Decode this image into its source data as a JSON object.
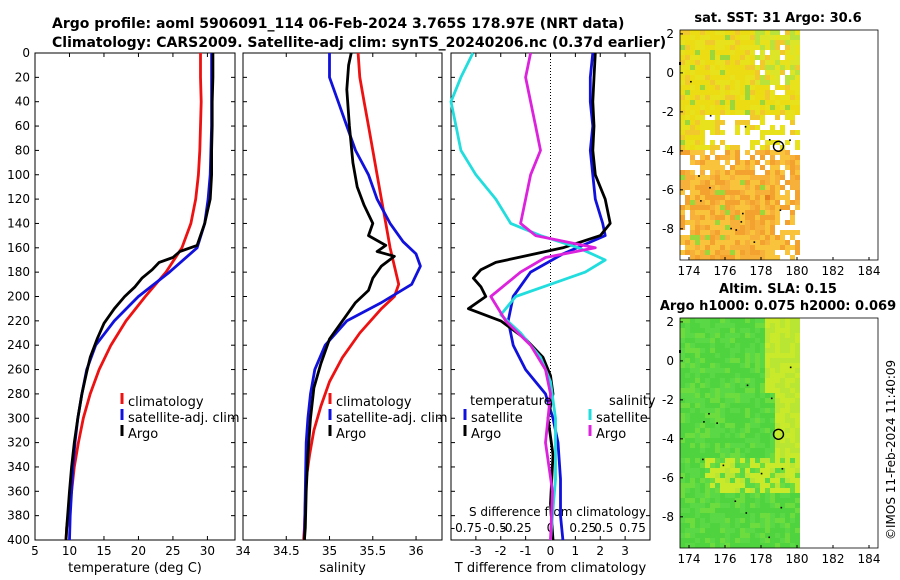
{
  "header": {
    "line1": "Argo profile: aoml 5906091_114 06-Feb-2024 3.765S 178.97E (NRT data)",
    "line2": "Climatology: CARS2009. Satellite-adj clim: synTS_20240206.nc (0.37d earlier)"
  },
  "colors": {
    "climatology": "#ee1111",
    "satellite_adj": "#1111dd",
    "argo": "#000000",
    "temp_satellite": "#22dddd",
    "sal_satellite": "#dd22dd"
  },
  "chart_data": [
    {
      "id": "temperature",
      "type": "line",
      "xlabel": "temperature (deg C)",
      "xlim": [
        5,
        34
      ],
      "xticks": [
        5,
        10,
        15,
        20,
        25,
        30
      ],
      "ylim": [
        0,
        400
      ],
      "yticks": [
        0,
        20,
        40,
        60,
        80,
        100,
        120,
        140,
        160,
        180,
        200,
        220,
        240,
        260,
        280,
        300,
        320,
        340,
        360,
        380,
        400
      ],
      "legend": [
        "climatology",
        "satellite-adj. clim",
        "Argo"
      ],
      "series": [
        {
          "name": "climatology",
          "color": "#ee1111",
          "x": [
            29.0,
            29.0,
            29.1,
            29.0,
            28.9,
            28.7,
            28.3,
            27.6,
            26.3,
            24.0,
            21.0,
            18.2,
            16.0,
            14.3,
            13.0,
            12.0,
            11.3,
            10.7,
            10.3,
            10.0,
            9.8,
            9.6,
            9.5
          ],
          "y": [
            0,
            20,
            40,
            60,
            80,
            100,
            120,
            140,
            160,
            180,
            200,
            220,
            240,
            260,
            280,
            300,
            320,
            340,
            360,
            370,
            380,
            390,
            400
          ]
        },
        {
          "name": "satellite-adj. clim",
          "color": "#1111dd",
          "x": [
            30.6,
            30.6,
            30.6,
            30.6,
            30.5,
            30.4,
            30.1,
            29.6,
            28.5,
            24.5,
            20.0,
            16.5,
            13.8,
            12.5,
            11.8,
            11.2,
            10.8,
            10.5,
            10.3,
            10.1,
            10.0
          ],
          "y": [
            0,
            20,
            40,
            60,
            80,
            100,
            120,
            140,
            160,
            180,
            200,
            220,
            240,
            260,
            280,
            300,
            320,
            340,
            360,
            380,
            400
          ]
        },
        {
          "name": "Argo",
          "color": "#000000",
          "x": [
            30.8,
            30.8,
            30.7,
            30.7,
            30.6,
            30.6,
            30.4,
            30.0,
            29.6,
            29.0,
            28.5,
            26.0,
            25.0,
            23.0,
            22.0,
            20.5,
            19.5,
            18.0,
            16.5,
            15.0,
            14.0,
            13.0,
            12.5,
            11.8,
            11.2,
            10.7,
            10.3,
            10.0,
            9.8,
            9.6,
            9.5
          ],
          "y": [
            0,
            20,
            40,
            60,
            80,
            100,
            120,
            130,
            140,
            150,
            158,
            163,
            168,
            172,
            178,
            185,
            192,
            200,
            210,
            222,
            235,
            250,
            262,
            280,
            300,
            320,
            340,
            360,
            375,
            390,
            400
          ]
        }
      ]
    },
    {
      "id": "salinity",
      "type": "line",
      "xlabel": "salinity",
      "xlim": [
        34,
        36.3
      ],
      "xticks": [
        34,
        34.5,
        35,
        35.5,
        36
      ],
      "ylim": [
        0,
        400
      ],
      "legend": [
        "climatology",
        "satellite-adj. clim",
        "Argo"
      ],
      "series": [
        {
          "name": "climatology",
          "color": "#ee1111",
          "x": [
            35.33,
            35.35,
            35.4,
            35.45,
            35.5,
            35.55,
            35.6,
            35.65,
            35.7,
            35.75,
            35.8,
            35.75,
            35.6,
            35.35,
            35.15,
            35.0,
            34.9,
            34.82,
            34.77,
            34.73,
            34.72,
            34.71,
            34.7
          ],
          "y": [
            0,
            20,
            40,
            60,
            80,
            100,
            120,
            140,
            160,
            175,
            190,
            200,
            210,
            230,
            250,
            270,
            290,
            310,
            330,
            350,
            370,
            390,
            400
          ]
        },
        {
          "name": "satellite-adj. clim",
          "color": "#1111dd",
          "x": [
            35.0,
            35.0,
            35.1,
            35.2,
            35.3,
            35.45,
            35.55,
            35.7,
            35.85,
            36.0,
            36.05,
            35.95,
            35.6,
            35.2,
            34.95,
            34.83,
            34.78,
            34.75,
            34.73,
            34.72,
            34.71
          ],
          "y": [
            0,
            20,
            40,
            60,
            80,
            100,
            120,
            140,
            155,
            165,
            175,
            190,
            205,
            220,
            240,
            260,
            280,
            300,
            320,
            360,
            400
          ]
        },
        {
          "name": "Argo",
          "color": "#000000",
          "x": [
            35.25,
            35.22,
            35.2,
            35.23,
            35.27,
            35.32,
            35.4,
            35.5,
            35.45,
            35.65,
            35.55,
            35.75,
            35.6,
            35.5,
            35.45,
            35.3,
            35.2,
            35.0,
            34.9,
            34.82,
            34.78,
            34.75,
            34.73,
            34.72,
            34.71
          ],
          "y": [
            0,
            10,
            30,
            60,
            90,
            110,
            125,
            140,
            150,
            158,
            163,
            167,
            175,
            185,
            195,
            205,
            215,
            235,
            255,
            275,
            300,
            330,
            360,
            390,
            400
          ]
        }
      ]
    },
    {
      "id": "difference",
      "type": "line",
      "xlabel": "T difference from climatology",
      "xlim": [
        -4,
        4
      ],
      "xticks": [
        -3,
        -2,
        -1,
        0,
        1,
        2,
        3
      ],
      "top_label": "S difference from climatology",
      "top_ticks": [
        "-0.75",
        "-0.5",
        "-0.25",
        "0",
        "0.25",
        "0.5",
        "0.75"
      ],
      "s_range": [
        -1,
        1
      ],
      "ylim": [
        0,
        400
      ],
      "legend_temperature_heading": "temperature",
      "legend_salinity_heading": "salinity",
      "legend": [
        "satellite",
        "Argo",
        "satellite",
        "Argo"
      ],
      "series": [
        {
          "name": "temperature satellite",
          "color": "#1111dd",
          "x": [
            1.7,
            1.6,
            1.6,
            1.7,
            1.6,
            1.7,
            1.8,
            2.1,
            2.2,
            0.5,
            -0.8,
            -1.5,
            -1.7,
            -1.5,
            -1.0,
            -0.2,
            0.1,
            0.3,
            0.4,
            0.4,
            0.5
          ],
          "y": [
            0,
            20,
            40,
            60,
            80,
            100,
            120,
            140,
            150,
            165,
            180,
            200,
            220,
            240,
            260,
            280,
            300,
            320,
            350,
            380,
            400
          ]
        },
        {
          "name": "temperature Argo",
          "color": "#000000",
          "x": [
            1.8,
            1.75,
            1.7,
            1.75,
            1.7,
            1.8,
            2.2,
            2.4,
            2.0,
            0.5,
            -1.3,
            -2.2,
            -2.8,
            -3.1,
            -2.8,
            -2.6,
            -3.3,
            -2.0,
            -1.0,
            -0.3,
            0.0,
            0.1,
            -0.1,
            0.1,
            0.0,
            0.1
          ],
          "y": [
            0,
            20,
            40,
            60,
            80,
            100,
            120,
            140,
            150,
            160,
            168,
            172,
            178,
            185,
            192,
            200,
            210,
            220,
            235,
            250,
            265,
            280,
            300,
            330,
            370,
            400
          ]
        },
        {
          "name": "salinity satellite",
          "color": "#22dddd",
          "x": [
            -0.78,
            -0.9,
            -1.0,
            -0.95,
            -0.9,
            -0.75,
            -0.55,
            -0.4,
            -0.1,
            0.28,
            0.55,
            0.35,
            0.0,
            -0.35,
            -0.5,
            -0.3,
            -0.1,
            0.0,
            0.05,
            0.05,
            0.0
          ],
          "y": [
            0,
            20,
            40,
            60,
            80,
            100,
            120,
            140,
            150,
            160,
            170,
            180,
            190,
            200,
            215,
            230,
            250,
            270,
            300,
            350,
            400
          ]
        },
        {
          "name": "salinity Argo",
          "color": "#dd22dd",
          "x": [
            -0.2,
            -0.25,
            -0.2,
            -0.15,
            -0.1,
            -0.2,
            -0.25,
            -0.3,
            -0.15,
            0.45,
            -0.05,
            -0.3,
            -0.6,
            -0.45,
            -0.2,
            -0.05,
            0.0,
            -0.05,
            0.02,
            0.0
          ],
          "y": [
            0,
            20,
            40,
            60,
            80,
            100,
            120,
            140,
            150,
            160,
            168,
            180,
            200,
            220,
            240,
            260,
            280,
            320,
            360,
            400
          ]
        }
      ]
    },
    {
      "id": "sst_map",
      "type": "heatmap",
      "title": "sat. SST: 31 Argo: 30.6",
      "xticks": [
        174,
        176,
        178,
        180,
        182,
        184
      ],
      "yticks": [
        2,
        0,
        -2,
        -4,
        -6,
        -8
      ],
      "xlim": [
        173.5,
        184.5
      ],
      "ylim": [
        -9.6,
        2.2
      ],
      "data_extent_lon": [
        173.5,
        180
      ],
      "argo_position": {
        "lon": 178.97,
        "lat": -3.765
      }
    },
    {
      "id": "sla_map",
      "type": "heatmap",
      "title": "Altim. SLA: 0.15",
      "subtitle": "Argo h1000: 0.075 h2000: 0.069",
      "xticks": [
        174,
        176,
        178,
        180,
        182,
        184
      ],
      "yticks": [
        2,
        0,
        -2,
        -4,
        -6,
        -8
      ],
      "xlim": [
        173.5,
        184.5
      ],
      "ylim": [
        -9.6,
        2.2
      ],
      "data_extent_lon": [
        173.5,
        180
      ],
      "argo_position": {
        "lon": 178.97,
        "lat": -3.765
      }
    }
  ],
  "credit": "©IMOS 11-Feb-2024 11:40:09"
}
